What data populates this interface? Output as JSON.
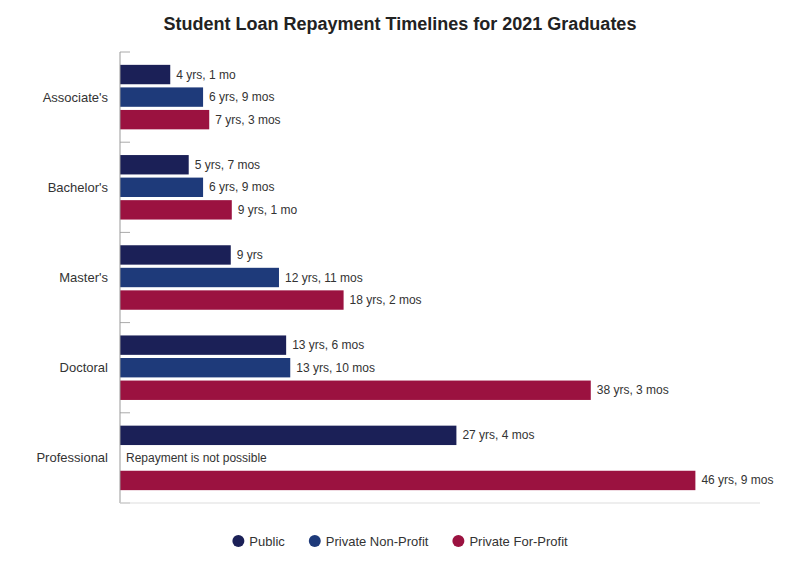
{
  "chart_data": {
    "type": "bar",
    "orientation": "horizontal",
    "title": "Student Loan Repayment Timelines for 2021 Graduates",
    "categories": [
      "Associate's",
      "Bachelor's",
      "Master's",
      "Doctoral",
      "Professional"
    ],
    "series": [
      {
        "name": "Public",
        "color": "#1b2057",
        "values": [
          4.083,
          5.583,
          9.0,
          13.5,
          27.333
        ],
        "value_labels": [
          "4 yrs, 1 mo",
          "5 yrs, 7 mos",
          "9 yrs",
          "13 yrs, 6 mos",
          "27 yrs, 4 mos"
        ]
      },
      {
        "name": "Private Non-Profit",
        "color": "#1e3a7a",
        "values": [
          6.75,
          6.75,
          12.917,
          13.833,
          0
        ],
        "value_labels": [
          "6 yrs, 9 mos",
          "6 yrs, 9 mos",
          "12 yrs, 11 mos",
          "13 yrs, 10 mos",
          "Repayment is not possible"
        ]
      },
      {
        "name": "Private For-Profit",
        "color": "#9b1240",
        "values": [
          7.25,
          9.083,
          18.167,
          38.25,
          46.75
        ],
        "value_labels": [
          "7 yrs, 3 mos",
          "9 yrs, 1 mo",
          "18 yrs, 2 mos",
          "38 yrs, 3 mos",
          "46 yrs, 9 mos"
        ]
      }
    ],
    "xlim": [
      0,
      52
    ],
    "data_labels": true,
    "tick_labels": "y",
    "grid": false,
    "legend": "bottom"
  }
}
